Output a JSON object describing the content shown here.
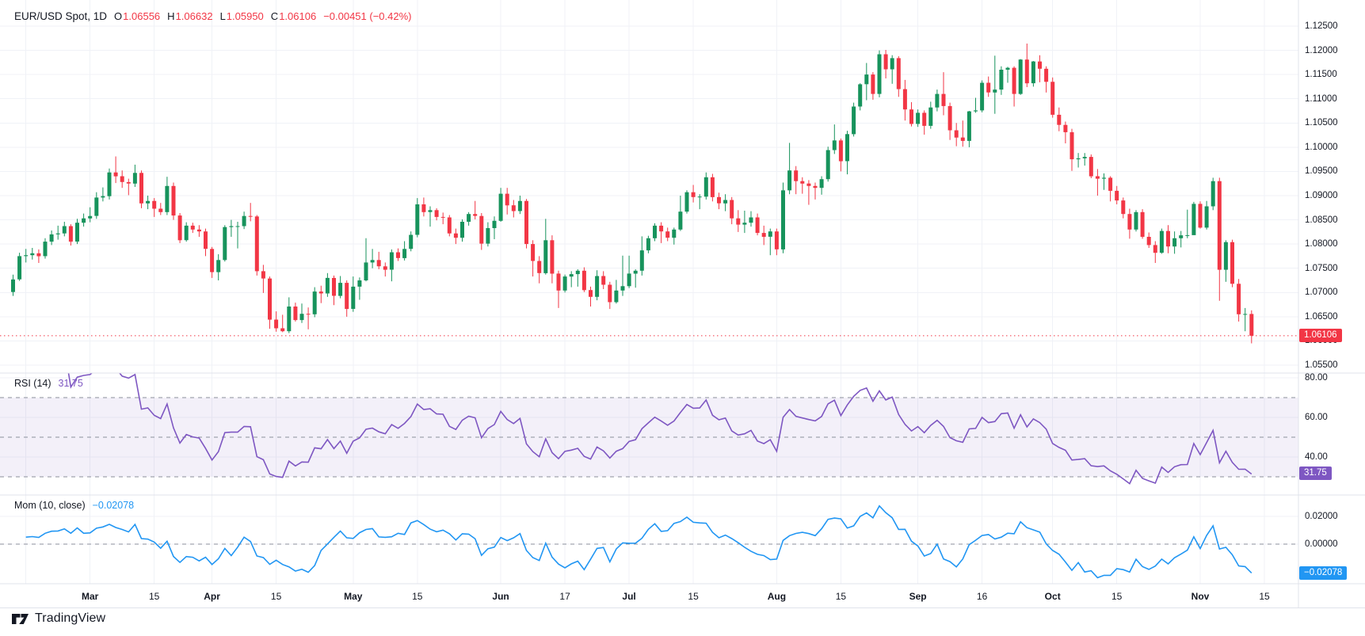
{
  "header": {
    "symbol": "EUR/USD Spot, 1D",
    "ohlc": [
      {
        "k": "O",
        "v": "1.06556"
      },
      {
        "k": "H",
        "v": "1.06632"
      },
      {
        "k": "L",
        "v": "1.05950"
      },
      {
        "k": "C",
        "v": "1.06106"
      }
    ],
    "change": "−0.00451 (−0.42%)"
  },
  "main_pane": {
    "price_ticks": [
      "1.12500",
      "1.12000",
      "1.11500",
      "1.11000",
      "1.10500",
      "1.10000",
      "1.09500",
      "1.09000",
      "1.08500",
      "1.08000",
      "1.07500",
      "1.07000",
      "1.06500",
      "1.06000",
      "1.05500"
    ],
    "last_price_badge": "1.06106"
  },
  "rsi_pane": {
    "title": "RSI (14)",
    "value": "31.75",
    "ticks": [
      "80.00",
      "60.00",
      "40.00"
    ],
    "dashed_levels": [
      70,
      50,
      30
    ],
    "band": [
      30,
      70
    ]
  },
  "mom_pane": {
    "title": "Mom (10, close)",
    "value": "−0.02078",
    "ticks": [
      "0.02000",
      "0.00000"
    ],
    "dashed_levels": [
      0
    ]
  },
  "time_axis": {
    "ticks": [
      {
        "label": "",
        "index": 2,
        "bold": false
      },
      {
        "label": "Mar",
        "index": 12,
        "bold": true
      },
      {
        "label": "15",
        "index": 22,
        "bold": false
      },
      {
        "label": "Apr",
        "index": 31,
        "bold": true
      },
      {
        "label": "15",
        "index": 41,
        "bold": false
      },
      {
        "label": "May",
        "index": 53,
        "bold": true
      },
      {
        "label": "15",
        "index": 63,
        "bold": false
      },
      {
        "label": "Jun",
        "index": 76,
        "bold": true
      },
      {
        "label": "17",
        "index": 86,
        "bold": false
      },
      {
        "label": "Jul",
        "index": 96,
        "bold": true
      },
      {
        "label": "15",
        "index": 106,
        "bold": false
      },
      {
        "label": "Aug",
        "index": 119,
        "bold": true
      },
      {
        "label": "15",
        "index": 129,
        "bold": false
      },
      {
        "label": "Sep",
        "index": 141,
        "bold": true
      },
      {
        "label": "16",
        "index": 151,
        "bold": false
      },
      {
        "label": "Oct",
        "index": 162,
        "bold": true
      },
      {
        "label": "15",
        "index": 172,
        "bold": false
      },
      {
        "label": "Nov",
        "index": 185,
        "bold": true
      },
      {
        "label": "15",
        "index": 195,
        "bold": false
      }
    ]
  },
  "footer": {
    "brand": "TradingView"
  },
  "colors": {
    "up": "#17935c",
    "down": "#f23645",
    "rsi_line": "#7e57c2",
    "rsi_band": "rgba(126,87,194,0.09)",
    "mom_line": "#2196f3",
    "grid": "#f0f2f7",
    "separator": "#e0e3eb",
    "dashed": "#8b8f9b",
    "text": "#131722",
    "last_price": "#f23645"
  },
  "chart_data": {
    "type": "candlestick",
    "title": "EUR/USD Spot, 1D",
    "symbol": "EUR/USD Spot",
    "interval": "1D",
    "y_axis": {
      "min": 1.055,
      "max": 1.125,
      "grid": true
    },
    "legend_position": "top-left",
    "indicators": [
      {
        "name": "RSI",
        "period": 14,
        "last_value": 31.75,
        "levels": [
          70,
          50,
          30
        ],
        "range": [
          0,
          100
        ]
      },
      {
        "name": "Momentum",
        "period": 10,
        "source": "close",
        "last_value": -0.02078
      }
    ],
    "last_bar": {
      "open": 1.06556,
      "high": 1.06632,
      "low": 1.0595,
      "close": 1.06106,
      "change": -0.00451,
      "change_pct": -0.42
    },
    "ohlc": [
      [
        1.0701,
        1.0737,
        1.0693,
        1.0727
      ],
      [
        1.0727,
        1.0782,
        1.0724,
        1.0775
      ],
      [
        1.0775,
        1.079,
        1.0762,
        1.0777
      ],
      [
        1.0777,
        1.0792,
        1.0768,
        1.0781
      ],
      [
        1.0781,
        1.0789,
        1.0761,
        1.0775
      ],
      [
        1.0775,
        1.0812,
        1.077,
        1.0805
      ],
      [
        1.0805,
        1.0828,
        1.0798,
        1.082
      ],
      [
        1.082,
        1.0838,
        1.0809,
        1.0822
      ],
      [
        1.0822,
        1.0846,
        1.0816,
        1.0837
      ],
      [
        1.0837,
        1.0841,
        1.0797,
        1.0805
      ],
      [
        1.0805,
        1.0852,
        1.08,
        1.0844
      ],
      [
        1.0844,
        1.0863,
        1.0836,
        1.0853
      ],
      [
        1.0853,
        1.0876,
        1.0845,
        1.0858
      ],
      [
        1.0858,
        1.0907,
        1.0852,
        1.0896
      ],
      [
        1.0896,
        1.0917,
        1.0888,
        1.0899
      ],
      [
        1.0899,
        1.0956,
        1.0892,
        1.0948
      ],
      [
        1.0948,
        1.0981,
        1.0926,
        1.094
      ],
      [
        1.094,
        1.0952,
        1.0916,
        1.0928
      ],
      [
        1.0928,
        1.0935,
        1.0901,
        1.0925
      ],
      [
        1.0925,
        1.0964,
        1.0918,
        1.0947
      ],
      [
        1.0947,
        1.0952,
        1.0874,
        1.0884
      ],
      [
        1.0884,
        1.09,
        1.0872,
        1.0889
      ],
      [
        1.0889,
        1.0895,
        1.0856,
        1.0873
      ],
      [
        1.0873,
        1.0885,
        1.086,
        1.0866
      ],
      [
        1.0866,
        1.0939,
        1.086,
        1.092
      ],
      [
        1.092,
        1.0927,
        1.085,
        1.0859
      ],
      [
        1.0859,
        1.0864,
        1.0802,
        1.0808
      ],
      [
        1.0808,
        1.0845,
        1.0805,
        1.0838
      ],
      [
        1.0838,
        1.0844,
        1.0823,
        1.083
      ],
      [
        1.083,
        1.0839,
        1.0815,
        1.0826
      ],
      [
        1.0826,
        1.0832,
        1.0775,
        1.079
      ],
      [
        1.079,
        1.0794,
        1.073,
        1.0742
      ],
      [
        1.0742,
        1.0779,
        1.0725,
        1.0767
      ],
      [
        1.0767,
        1.0839,
        1.0764,
        1.0835
      ],
      [
        1.0835,
        1.085,
        1.0815,
        1.0837
      ],
      [
        1.0837,
        1.0846,
        1.0791,
        1.0837
      ],
      [
        1.0837,
        1.0867,
        1.0831,
        1.0858
      ],
      [
        1.0858,
        1.0885,
        1.0847,
        1.0857
      ],
      [
        1.0857,
        1.086,
        1.0735,
        1.0744
      ],
      [
        1.0744,
        1.0757,
        1.0699,
        1.0729
      ],
      [
        1.0729,
        1.0733,
        1.0625,
        1.0644
      ],
      [
        1.0644,
        1.0661,
        1.0619,
        1.0626
      ],
      [
        1.0626,
        1.0654,
        1.0618,
        1.062
      ],
      [
        1.062,
        1.069,
        1.0616,
        1.0671
      ],
      [
        1.0671,
        1.0679,
        1.064,
        1.0643
      ],
      [
        1.0643,
        1.0677,
        1.0637,
        1.0656
      ],
      [
        1.0656,
        1.0669,
        1.0624,
        1.0655
      ],
      [
        1.0655,
        1.0711,
        1.0649,
        1.0702
      ],
      [
        1.0702,
        1.0714,
        1.0678,
        1.0698
      ],
      [
        1.0698,
        1.074,
        1.0691,
        1.073
      ],
      [
        1.073,
        1.0735,
        1.0674,
        1.0693
      ],
      [
        1.0693,
        1.0734,
        1.0688,
        1.072
      ],
      [
        1.072,
        1.0725,
        1.065,
        1.0666
      ],
      [
        1.0666,
        1.0733,
        1.066,
        1.0712
      ],
      [
        1.0712,
        1.0731,
        1.0685,
        1.0725
      ],
      [
        1.0725,
        1.0812,
        1.0723,
        1.0762
      ],
      [
        1.0762,
        1.079,
        1.075,
        1.0767
      ],
      [
        1.0767,
        1.0784,
        1.0748,
        1.0754
      ],
      [
        1.0754,
        1.0762,
        1.0733,
        1.0747
      ],
      [
        1.0747,
        1.0789,
        1.0723,
        1.0783
      ],
      [
        1.0783,
        1.0791,
        1.0765,
        1.0771
      ],
      [
        1.0771,
        1.0806,
        1.0766,
        1.079
      ],
      [
        1.079,
        1.0826,
        1.0785,
        1.0819
      ],
      [
        1.0819,
        1.0895,
        1.0814,
        1.0882
      ],
      [
        1.0882,
        1.0896,
        1.0857,
        1.0866
      ],
      [
        1.0866,
        1.0878,
        1.0836,
        1.087
      ],
      [
        1.087,
        1.0874,
        1.0849,
        1.0856
      ],
      [
        1.0856,
        1.0865,
        1.0841,
        1.0855
      ],
      [
        1.0855,
        1.086,
        1.0816,
        1.0822
      ],
      [
        1.0822,
        1.0832,
        1.08,
        1.0813
      ],
      [
        1.0813,
        1.0851,
        1.0805,
        1.0846
      ],
      [
        1.0846,
        1.0866,
        1.0838,
        1.0862
      ],
      [
        1.0862,
        1.0889,
        1.0851,
        1.0858
      ],
      [
        1.0858,
        1.0864,
        1.0788,
        1.0801
      ],
      [
        1.0801,
        1.0845,
        1.0795,
        1.0833
      ],
      [
        1.0833,
        1.0857,
        1.081,
        1.0848
      ],
      [
        1.0848,
        1.0916,
        1.0846,
        1.0904
      ],
      [
        1.0904,
        1.0916,
        1.0861,
        1.088
      ],
      [
        1.088,
        1.0891,
        1.0855,
        1.0868
      ],
      [
        1.0868,
        1.09,
        1.0862,
        1.0889
      ],
      [
        1.0889,
        1.0893,
        1.0791,
        1.08
      ],
      [
        1.08,
        1.0808,
        1.0733,
        1.0765
      ],
      [
        1.0765,
        1.0775,
        1.0719,
        1.074
      ],
      [
        1.074,
        1.0852,
        1.0737,
        1.0808
      ],
      [
        1.0808,
        1.0818,
        1.0719,
        1.0739
      ],
      [
        1.0739,
        1.0745,
        1.0668,
        1.0704
      ],
      [
        1.0704,
        1.0737,
        1.07,
        1.0733
      ],
      [
        1.0733,
        1.0744,
        1.0711,
        1.0738
      ],
      [
        1.0738,
        1.0748,
        1.0712,
        1.0745
      ],
      [
        1.0745,
        1.0752,
        1.0701,
        1.0705
      ],
      [
        1.0705,
        1.0712,
        1.0671,
        1.0691
      ],
      [
        1.0691,
        1.0746,
        1.0684,
        1.0734
      ],
      [
        1.0734,
        1.0744,
        1.0707,
        1.0716
      ],
      [
        1.0716,
        1.0722,
        1.0666,
        1.068
      ],
      [
        1.068,
        1.0726,
        1.0677,
        1.0704
      ],
      [
        1.0704,
        1.0776,
        1.0693,
        1.0713
      ],
      [
        1.0713,
        1.0776,
        1.0709,
        1.0739
      ],
      [
        1.0739,
        1.0748,
        1.071,
        1.0745
      ],
      [
        1.0745,
        1.0816,
        1.0735,
        1.0787
      ],
      [
        1.0787,
        1.0817,
        1.0781,
        1.0812
      ],
      [
        1.0812,
        1.0843,
        1.0806,
        1.0838
      ],
      [
        1.0838,
        1.0845,
        1.0802,
        1.0826
      ],
      [
        1.0826,
        1.0834,
        1.0806,
        1.0813
      ],
      [
        1.0813,
        1.0834,
        1.0799,
        1.083
      ],
      [
        1.083,
        1.09,
        1.0827,
        1.0867
      ],
      [
        1.0867,
        1.0911,
        1.0863,
        1.0907
      ],
      [
        1.0907,
        1.0922,
        1.0886,
        1.0897
      ],
      [
        1.0897,
        1.0903,
        1.0872,
        1.0898
      ],
      [
        1.0898,
        1.0948,
        1.0892,
        1.0938
      ],
      [
        1.0938,
        1.0945,
        1.0888,
        1.0897
      ],
      [
        1.0897,
        1.0906,
        1.0872,
        1.0884
      ],
      [
        1.0884,
        1.0903,
        1.0868,
        1.0891
      ],
      [
        1.0891,
        1.0897,
        1.0841,
        1.0853
      ],
      [
        1.0853,
        1.087,
        1.0825,
        1.084
      ],
      [
        1.084,
        1.0869,
        1.0823,
        1.0844
      ],
      [
        1.0844,
        1.0868,
        1.0836,
        1.0855
      ],
      [
        1.0855,
        1.0863,
        1.0818,
        1.0823
      ],
      [
        1.0823,
        1.0838,
        1.0798,
        1.0815
      ],
      [
        1.0815,
        1.0832,
        1.0777,
        1.0826
      ],
      [
        1.0826,
        1.0832,
        1.0777,
        1.0789
      ],
      [
        1.0789,
        1.0927,
        1.0781,
        1.0911
      ],
      [
        1.0911,
        1.1009,
        1.0903,
        1.0952
      ],
      [
        1.0952,
        1.0961,
        1.0903,
        1.093
      ],
      [
        1.093,
        1.0938,
        1.0904,
        1.0925
      ],
      [
        1.0925,
        1.0932,
        1.0881,
        1.092
      ],
      [
        1.092,
        1.0927,
        1.0892,
        1.0916
      ],
      [
        1.0916,
        1.094,
        1.0902,
        1.0934
      ],
      [
        1.0934,
        1.1001,
        1.0929,
        1.0994
      ],
      [
        1.0994,
        1.1047,
        1.0986,
        1.1014
      ],
      [
        1.1014,
        1.1018,
        1.095,
        1.0971
      ],
      [
        1.0971,
        1.1034,
        1.0944,
        1.1027
      ],
      [
        1.1027,
        1.1092,
        1.1022,
        1.1084
      ],
      [
        1.1084,
        1.1132,
        1.1076,
        1.113
      ],
      [
        1.113,
        1.1174,
        1.1097,
        1.115
      ],
      [
        1.115,
        1.1155,
        1.1098,
        1.111
      ],
      [
        1.111,
        1.12,
        1.1103,
        1.1192
      ],
      [
        1.1192,
        1.1201,
        1.1142,
        1.1161
      ],
      [
        1.1161,
        1.119,
        1.1131,
        1.1184
      ],
      [
        1.1184,
        1.1188,
        1.1104,
        1.112
      ],
      [
        1.112,
        1.1139,
        1.1055,
        1.1078
      ],
      [
        1.1078,
        1.1093,
        1.1043,
        1.1048
      ],
      [
        1.1048,
        1.1078,
        1.1042,
        1.1071
      ],
      [
        1.1071,
        1.1076,
        1.1026,
        1.1044
      ],
      [
        1.1044,
        1.1094,
        1.1038,
        1.1082
      ],
      [
        1.1082,
        1.1119,
        1.1074,
        1.111
      ],
      [
        1.111,
        1.1155,
        1.1066,
        1.1085
      ],
      [
        1.1085,
        1.1092,
        1.1015,
        1.1035
      ],
      [
        1.1035,
        1.105,
        1.1002,
        1.102
      ],
      [
        1.102,
        1.1055,
        1.1001,
        1.1013
      ],
      [
        1.1013,
        1.1075,
        1.1,
        1.1074
      ],
      [
        1.1074,
        1.1102,
        1.1071,
        1.1076
      ],
      [
        1.1076,
        1.1138,
        1.1072,
        1.1133
      ],
      [
        1.1133,
        1.1146,
        1.1104,
        1.1113
      ],
      [
        1.1113,
        1.1189,
        1.1069,
        1.1119
      ],
      [
        1.1119,
        1.1167,
        1.1108,
        1.116
      ],
      [
        1.116,
        1.1166,
        1.1133,
        1.1164
      ],
      [
        1.1164,
        1.1167,
        1.1084,
        1.111
      ],
      [
        1.111,
        1.1182,
        1.1108,
        1.1181
      ],
      [
        1.1181,
        1.1214,
        1.1124,
        1.1132
      ],
      [
        1.1132,
        1.1178,
        1.1125,
        1.1177
      ],
      [
        1.1177,
        1.119,
        1.1134,
        1.1162
      ],
      [
        1.1162,
        1.1167,
        1.1113,
        1.1135
      ],
      [
        1.1135,
        1.1144,
        1.1061,
        1.1067
      ],
      [
        1.1067,
        1.1082,
        1.1033,
        1.1046
      ],
      [
        1.1046,
        1.1053,
        1.1008,
        1.1031
      ],
      [
        1.1031,
        1.1038,
        1.0951,
        1.0975
      ],
      [
        1.0975,
        1.0988,
        1.0958,
        1.0977
      ],
      [
        1.0977,
        1.0988,
        1.0962,
        1.098
      ],
      [
        1.098,
        1.0985,
        1.0936,
        1.094
      ],
      [
        1.094,
        1.0955,
        1.09,
        1.0935
      ],
      [
        1.0935,
        1.0946,
        1.0912,
        1.0937
      ],
      [
        1.0937,
        1.094,
        1.0888,
        1.091
      ],
      [
        1.091,
        1.092,
        1.0882,
        1.089
      ],
      [
        1.089,
        1.0896,
        1.0853,
        1.0862
      ],
      [
        1.0862,
        1.0873,
        1.0811,
        1.083
      ],
      [
        1.083,
        1.087,
        1.0826,
        1.0866
      ],
      [
        1.0866,
        1.0872,
        1.0811,
        1.0815
      ],
      [
        1.0815,
        1.0824,
        1.0792,
        1.0798
      ],
      [
        1.0798,
        1.0806,
        1.0761,
        1.0782
      ],
      [
        1.0782,
        1.0832,
        1.078,
        1.0827
      ],
      [
        1.0827,
        1.0839,
        1.0781,
        1.0795
      ],
      [
        1.0795,
        1.0826,
        1.078,
        1.0812
      ],
      [
        1.0812,
        1.0827,
        1.0793,
        1.0818
      ],
      [
        1.0818,
        1.0871,
        1.0812,
        1.08184
      ],
      [
        1.08184,
        1.0887,
        1.0843,
        1.0883
      ],
      [
        1.0883,
        1.0888,
        1.0832,
        1.0834
      ],
      [
        1.0834,
        1.0889,
        1.083,
        1.0878
      ],
      [
        1.0878,
        1.0937,
        1.087,
        1.093
      ],
      [
        1.093,
        1.0937,
        1.0683,
        1.0747
      ],
      [
        1.0747,
        1.0808,
        1.0722,
        1.0804
      ],
      [
        1.0804,
        1.0809,
        1.0711,
        1.0718
      ],
      [
        1.0718,
        1.0728,
        1.064,
        1.0655
      ],
      [
        1.0655,
        1.0668,
        1.062,
        1.06556
      ],
      [
        1.06556,
        1.06632,
        1.0595,
        1.06106
      ]
    ]
  }
}
